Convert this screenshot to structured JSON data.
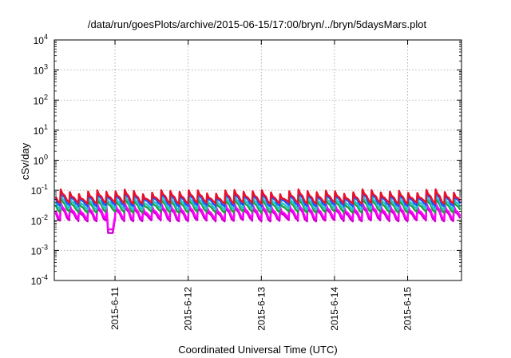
{
  "chart_data": {
    "type": "line",
    "title": "/data/run/goesPlots/archive/2015-06-15/17:00/bryn/../bryn/5daysMars.plot",
    "xlabel": "Coordinated Universal Time (UTC)",
    "ylabel": "cSv/day",
    "yscale": "log",
    "ylim": [
      0.0001,
      10000
    ],
    "xlim": [
      "2015-06-10T04:05",
      "2015-06-15T17:40"
    ],
    "grid": true,
    "legend": "none",
    "y_ticks": [
      {
        "value": 0.0001,
        "base": "10",
        "exp": "-4"
      },
      {
        "value": 0.001,
        "base": "10",
        "exp": "-3"
      },
      {
        "value": 0.01,
        "base": "10",
        "exp": "-2"
      },
      {
        "value": 0.1,
        "base": "10",
        "exp": "-1"
      },
      {
        "value": 1,
        "base": "10",
        "exp": "0"
      },
      {
        "value": 10,
        "base": "10",
        "exp": "1"
      },
      {
        "value": 100,
        "base": "10",
        "exp": "2"
      },
      {
        "value": 1000,
        "base": "10",
        "exp": "3"
      },
      {
        "value": 10000,
        "base": "10",
        "exp": "4"
      }
    ],
    "x_ticks": [
      {
        "value": "2015-06-11T00:00",
        "label": "2015-6-11"
      },
      {
        "value": "2015-06-12T00:00",
        "label": "2015-6-12"
      },
      {
        "value": "2015-06-13T00:00",
        "label": "2015-6-13"
      },
      {
        "value": "2015-06-14T00:00",
        "label": "2015-6-14"
      },
      {
        "value": "2015-06-15T00:00",
        "label": "2015-6-15"
      }
    ],
    "series": [
      {
        "color": "#e8102a",
        "peak": 0.092,
        "low": 0.038
      },
      {
        "color": "#2050ff",
        "peak": 0.082,
        "low": 0.031
      },
      {
        "color": "#20c8c8",
        "peak": 0.062,
        "low": 0.024
      },
      {
        "color": "#20a040",
        "peak": 0.05,
        "low": 0.019
      },
      {
        "color": "#ff00ff",
        "peak": 0.033,
        "low": 0.0118
      },
      {
        "color": "#cc00cc",
        "peak": 0.028,
        "low": 0.0098
      }
    ],
    "cycle_hours": 3,
    "dip": {
      "time": "2015-06-10T22:40",
      "value": 0.0038
    }
  }
}
